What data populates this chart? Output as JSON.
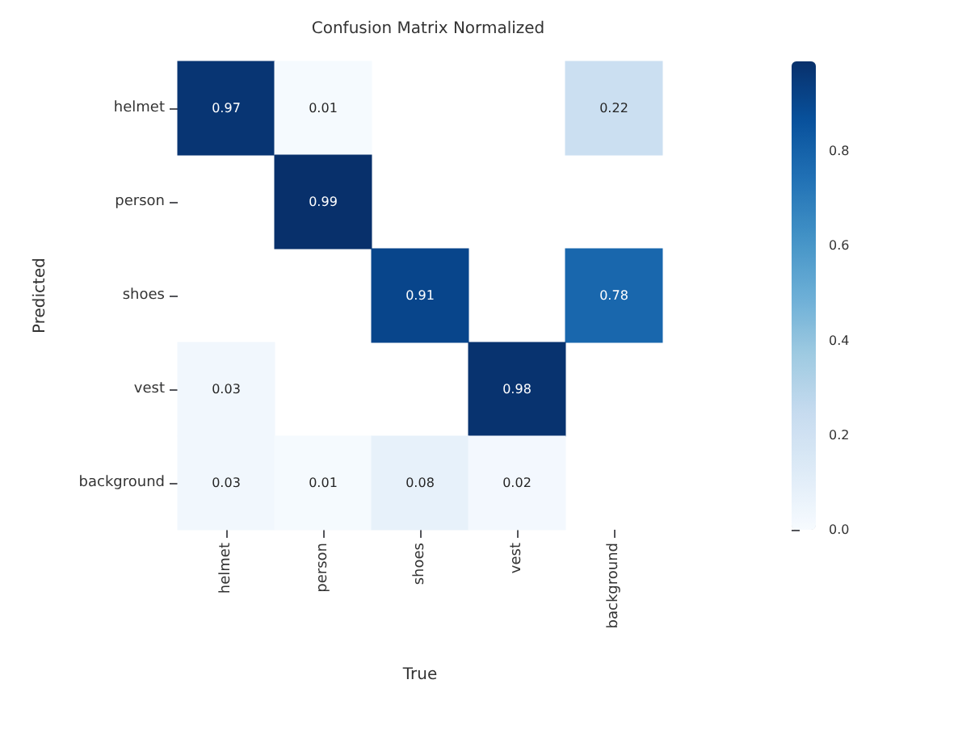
{
  "chart_data": {
    "type": "heatmap",
    "title": "Confusion Matrix Normalized",
    "xlabel": "True",
    "ylabel": "Predicted",
    "categories": [
      "helmet",
      "person",
      "shoes",
      "vest",
      "background"
    ],
    "y_categories": [
      "helmet",
      "person",
      "shoes",
      "vest",
      "background"
    ],
    "cells": [
      [
        0.97,
        0.01,
        null,
        null,
        0.22
      ],
      [
        null,
        0.99,
        null,
        null,
        null
      ],
      [
        null,
        null,
        0.91,
        null,
        0.78
      ],
      [
        0.03,
        null,
        null,
        0.98,
        null
      ],
      [
        0.03,
        0.01,
        0.08,
        0.02,
        null
      ]
    ],
    "clim": [
      0,
      0.99
    ],
    "cticks": [
      {
        "value": 0,
        "label": "0.0"
      },
      {
        "value": 0.2,
        "label": "0.2"
      },
      {
        "value": 0.4,
        "label": "0.4"
      },
      {
        "value": 0.6,
        "label": "0.6"
      },
      {
        "value": 0.8,
        "label": "0.8"
      }
    ],
    "data_labels": true
  }
}
